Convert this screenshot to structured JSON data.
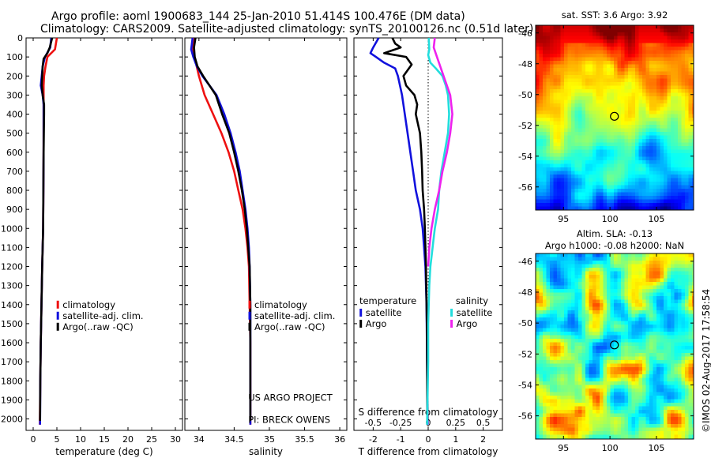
{
  "header": {
    "title_line1": "Argo profile: aoml 1900683_144 25-Jan-2010 51.414S 100.476E (DM data)",
    "title_line2": "Climatology: CARS2009. Satellite-adjusted climatology: synTS_20100126.nc (0.51d later)"
  },
  "footer": {
    "credit_line1": "US ARGO PROJECT",
    "credit_line2": "PI: BRECK OWENS",
    "timestamp": "©IMOS 02-Aug-2017 17:58:54"
  },
  "colors": {
    "climatology": "#ee1111",
    "satellite": "#1111dd",
    "argo": "#000000",
    "satellite_salinity": "#22dddd",
    "argo_salinity": "#ee22ee"
  },
  "chart_data": [
    {
      "type": "line",
      "id": "temperature-profile",
      "xlabel": "temperature (deg C)",
      "xlim": [
        -1.5,
        31.5
      ],
      "ylim": [
        0,
        2060
      ],
      "x_ticks": [
        0,
        5,
        10,
        15,
        20,
        25,
        30
      ],
      "y_ticks": [
        0,
        100,
        200,
        300,
        400,
        500,
        600,
        700,
        800,
        900,
        1000,
        1100,
        1200,
        1300,
        1400,
        1500,
        1600,
        1700,
        1800,
        1900,
        2000
      ],
      "legend": [
        "climatology",
        "satellite-adj. clim.",
        "Argo(..raw -QC)"
      ],
      "legend_position": "lower-right",
      "series": [
        {
          "name": "climatology",
          "color": "#ee1111",
          "points": [
            [
              5.0,
              0
            ],
            [
              4.6,
              60
            ],
            [
              3.0,
              100
            ],
            [
              2.6,
              150
            ],
            [
              2.3,
              200
            ],
            [
              2.2,
              250
            ],
            [
              2.2,
              300
            ],
            [
              2.2,
              400
            ],
            [
              2.2,
              600
            ],
            [
              2.15,
              800
            ],
            [
              2.1,
              1000
            ],
            [
              1.9,
              1200
            ],
            [
              1.75,
              1400
            ],
            [
              1.6,
              1600
            ],
            [
              1.5,
              1800
            ],
            [
              1.4,
              2030
            ]
          ]
        },
        {
          "name": "satellite-adj. clim.",
          "color": "#1111dd",
          "points": [
            [
              3.8,
              0
            ],
            [
              3.6,
              50
            ],
            [
              2.5,
              100
            ],
            [
              2.0,
              150
            ],
            [
              1.8,
              200
            ],
            [
              1.6,
              250
            ],
            [
              2.0,
              300
            ],
            [
              2.2,
              350
            ],
            [
              2.2,
              400
            ],
            [
              2.2,
              600
            ],
            [
              2.15,
              800
            ],
            [
              2.1,
              1000
            ],
            [
              1.9,
              1200
            ],
            [
              1.75,
              1400
            ],
            [
              1.6,
              1600
            ],
            [
              1.5,
              1800
            ],
            [
              1.45,
              2030
            ]
          ]
        },
        {
          "name": "Argo(..raw -QC)",
          "color": "#000000",
          "points": [
            [
              4.0,
              0
            ],
            [
              3.5,
              50
            ],
            [
              3.0,
              80
            ],
            [
              2.2,
              110
            ],
            [
              2.0,
              150
            ],
            [
              1.9,
              200
            ],
            [
              1.8,
              250
            ],
            [
              2.0,
              300
            ],
            [
              2.3,
              350
            ],
            [
              2.3,
              400
            ],
            [
              2.2,
              600
            ],
            [
              2.15,
              800
            ],
            [
              2.1,
              1000
            ],
            [
              1.9,
              1200
            ],
            [
              1.75,
              1400
            ],
            [
              1.6,
              1600
            ],
            [
              1.5,
              1800
            ],
            [
              1.45,
              2010
            ]
          ]
        }
      ]
    },
    {
      "type": "line",
      "id": "salinity-profile",
      "xlabel": "salinity",
      "xlim": [
        33.8,
        36.1
      ],
      "ylim": [
        0,
        2060
      ],
      "x_ticks": [
        34,
        34.5,
        35,
        35.5,
        36
      ],
      "legend": [
        "climatology",
        "satellite-adj. clim.",
        "Argo(..raw -QC)"
      ],
      "legend_position": "lower-right",
      "series": [
        {
          "name": "climatology",
          "color": "#ee1111",
          "points": [
            [
              33.92,
              0
            ],
            [
              33.91,
              60
            ],
            [
              33.95,
              120
            ],
            [
              34.0,
              200
            ],
            [
              34.08,
              300
            ],
            [
              34.2,
              400
            ],
            [
              34.32,
              500
            ],
            [
              34.42,
              600
            ],
            [
              34.5,
              700
            ],
            [
              34.56,
              800
            ],
            [
              34.62,
              900
            ],
            [
              34.66,
              1000
            ],
            [
              34.69,
              1100
            ],
            [
              34.71,
              1200
            ],
            [
              34.72,
              1400
            ],
            [
              34.73,
              1600
            ],
            [
              34.73,
              1800
            ],
            [
              34.73,
              2030
            ]
          ]
        },
        {
          "name": "satellite-adj. clim.",
          "color": "#1111dd",
          "points": [
            [
              33.91,
              0
            ],
            [
              33.89,
              60
            ],
            [
              33.92,
              100
            ],
            [
              33.97,
              150
            ],
            [
              34.05,
              200
            ],
            [
              34.15,
              250
            ],
            [
              34.25,
              300
            ],
            [
              34.36,
              400
            ],
            [
              34.45,
              500
            ],
            [
              34.52,
              600
            ],
            [
              34.58,
              700
            ],
            [
              34.62,
              800
            ],
            [
              34.66,
              900
            ],
            [
              34.69,
              1000
            ],
            [
              34.71,
              1100
            ],
            [
              34.72,
              1200
            ],
            [
              34.73,
              1400
            ],
            [
              34.73,
              1600
            ],
            [
              34.73,
              1800
            ],
            [
              34.73,
              2030
            ]
          ]
        },
        {
          "name": "Argo(..raw -QC)",
          "color": "#000000",
          "points": [
            [
              33.95,
              0
            ],
            [
              33.93,
              50
            ],
            [
              33.94,
              100
            ],
            [
              33.98,
              150
            ],
            [
              34.06,
              200
            ],
            [
              34.15,
              250
            ],
            [
              34.24,
              300
            ],
            [
              34.33,
              400
            ],
            [
              34.43,
              500
            ],
            [
              34.5,
              600
            ],
            [
              34.56,
              700
            ],
            [
              34.61,
              800
            ],
            [
              34.65,
              900
            ],
            [
              34.68,
              1000
            ],
            [
              34.7,
              1100
            ],
            [
              34.72,
              1200
            ],
            [
              34.73,
              1400
            ],
            [
              34.73,
              1600
            ],
            [
              34.73,
              1800
            ],
            [
              34.73,
              2010
            ]
          ]
        }
      ]
    },
    {
      "type": "line",
      "id": "difference-from-climatology",
      "xlabel": "T difference from climatology",
      "x2label": "S difference from climatology",
      "xlim": [
        -2.7,
        2.7
      ],
      "x_ticks": [
        -2,
        -1,
        0,
        1,
        2
      ],
      "x2_ticks": [
        -0.5,
        -0.25,
        0,
        0.25,
        0.5
      ],
      "x2_tick_labels": [
        "-0.5",
        "-0.25",
        "0",
        "0.25",
        "0.5"
      ],
      "ylim": [
        0,
        2060
      ],
      "legend_temperature_title": "temperature",
      "legend_salinity_title": "salinity",
      "legend": [
        "satellite",
        "Argo",
        "satellite",
        "Argo"
      ],
      "legend_position": "lower-center",
      "series": [
        {
          "name": "satellite",
          "group": "temperature",
          "color": "#1111dd",
          "points": [
            [
              -1.8,
              0
            ],
            [
              -2.0,
              50
            ],
            [
              -2.1,
              80
            ],
            [
              -1.9,
              100
            ],
            [
              -1.6,
              130
            ],
            [
              -1.2,
              160
            ],
            [
              -1.1,
              200
            ],
            [
              -0.95,
              300
            ],
            [
              -0.85,
              400
            ],
            [
              -0.75,
              500
            ],
            [
              -0.65,
              600
            ],
            [
              -0.55,
              700
            ],
            [
              -0.45,
              800
            ],
            [
              -0.3,
              900
            ],
            [
              -0.2,
              1000
            ],
            [
              -0.15,
              1100
            ],
            [
              -0.1,
              1200
            ],
            [
              -0.06,
              1400
            ],
            [
              -0.04,
              1700
            ],
            [
              -0.02,
              2030
            ]
          ]
        },
        {
          "name": "Argo",
          "group": "temperature",
          "color": "#000000",
          "points": [
            [
              -1.3,
              0
            ],
            [
              -1.2,
              30
            ],
            [
              -1.0,
              50
            ],
            [
              -1.6,
              80
            ],
            [
              -0.8,
              100
            ],
            [
              -0.6,
              140
            ],
            [
              -0.9,
              200
            ],
            [
              -0.8,
              250
            ],
            [
              -0.5,
              300
            ],
            [
              -0.4,
              350
            ],
            [
              -0.45,
              400
            ],
            [
              -0.3,
              500
            ],
            [
              -0.25,
              600
            ],
            [
              -0.22,
              700
            ],
            [
              -0.2,
              800
            ],
            [
              -0.15,
              900
            ],
            [
              -0.12,
              1000
            ],
            [
              -0.08,
              1200
            ],
            [
              -0.05,
              1500
            ],
            [
              -0.03,
              2010
            ]
          ]
        },
        {
          "name": "satellite",
          "group": "salinity",
          "color": "#22dddd",
          "points": [
            [
              0.005,
              0
            ],
            [
              0.01,
              60
            ],
            [
              0.0,
              90
            ],
            [
              0.02,
              130
            ],
            [
              0.07,
              160
            ],
            [
              0.13,
              200
            ],
            [
              0.16,
              250
            ],
            [
              0.18,
              300
            ],
            [
              0.19,
              400
            ],
            [
              0.18,
              500
            ],
            [
              0.15,
              600
            ],
            [
              0.12,
              700
            ],
            [
              0.1,
              800
            ],
            [
              0.09,
              900
            ],
            [
              0.06,
              1000
            ],
            [
              0.04,
              1100
            ],
            [
              0.02,
              1200
            ],
            [
              0.01,
              1300
            ],
            [
              0.0,
              1500
            ],
            [
              0.0,
              1700
            ],
            [
              -0.01,
              2030
            ]
          ]
        },
        {
          "name": "Argo",
          "group": "salinity",
          "color": "#ee22ee",
          "points": [
            [
              0.06,
              0
            ],
            [
              0.05,
              50
            ],
            [
              0.08,
              100
            ],
            [
              0.11,
              150
            ],
            [
              0.14,
              200
            ],
            [
              0.17,
              250
            ],
            [
              0.2,
              300
            ],
            [
              0.22,
              400
            ],
            [
              0.2,
              500
            ],
            [
              0.17,
              600
            ],
            [
              0.13,
              700
            ],
            [
              0.1,
              800
            ],
            [
              0.06,
              900
            ],
            [
              0.03,
              1000
            ],
            [
              0.01,
              1100
            ],
            [
              0.0,
              1200
            ]
          ]
        }
      ]
    },
    {
      "type": "heatmap",
      "id": "sst-map",
      "title": "sat. SST: 3.6 Argo: 3.92",
      "xlim": [
        92,
        109
      ],
      "ylim": [
        -57.5,
        -45.5
      ],
      "x_ticks": [
        95,
        100,
        105
      ],
      "y_ticks": [
        -46,
        -48,
        -50,
        -52,
        -54,
        -56
      ],
      "marker": {
        "lon": 100.476,
        "lat": -51.414
      }
    },
    {
      "type": "heatmap",
      "id": "sla-map",
      "title_line1": "Altim. SLA: -0.13",
      "title_line2": "Argo h1000: -0.08 h2000: NaN",
      "xlim": [
        92,
        109
      ],
      "ylim": [
        -57.5,
        -45.5
      ],
      "x_ticks": [
        95,
        100,
        105
      ],
      "y_ticks": [
        -46,
        -48,
        -50,
        -52,
        -54,
        -56
      ],
      "marker": {
        "lon": 100.476,
        "lat": -51.414
      }
    }
  ]
}
